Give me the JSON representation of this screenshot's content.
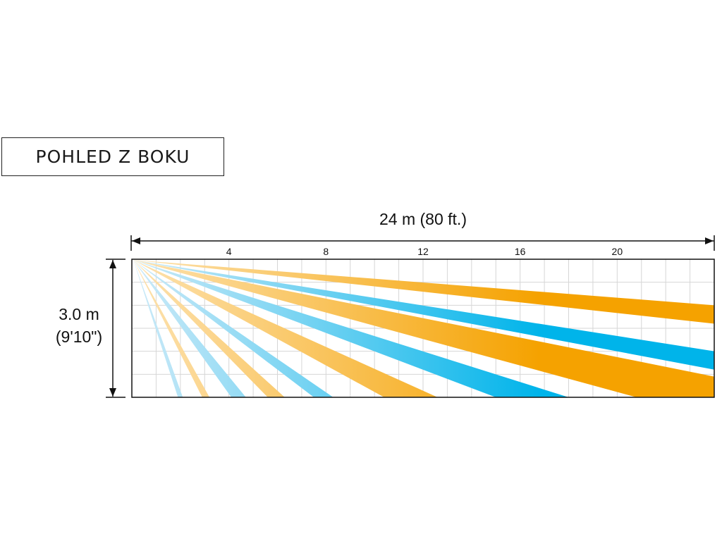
{
  "view_label": "POHLED Z BOKU",
  "dimensions": {
    "width": "24 m (80 ft.)",
    "height_m": "3.0 m",
    "height_ft": "(9'10\")"
  },
  "scale": {
    "range_m": 24,
    "height_m": 3.0,
    "tick_labels": [
      "4",
      "8",
      "12",
      "16",
      "20"
    ],
    "tick_values_m": [
      4,
      8,
      12,
      16,
      20
    ]
  },
  "colors": {
    "orange": "#f5a200",
    "orange_light": "#fde2b0",
    "blue": "#00b4ea",
    "blue_light": "#cdeaf8",
    "grid": "#d6d6d6",
    "frame": "#111111"
  },
  "beams": [
    {
      "color": "orange",
      "near_m": 40,
      "far_m": 40,
      "end_top_h": 2.0,
      "end_bot_h": 1.6
    },
    {
      "color": "blue",
      "near_m": 40,
      "far_m": 40,
      "end_top_h": 1.0,
      "end_bot_h": 0.6
    },
    {
      "color": "orange",
      "near_m": 40,
      "far_m": 40,
      "end_top_h": 0.45,
      "end_bot_h": 0.0
    },
    {
      "color": "blue",
      "near_m": 15,
      "far_m": 18,
      "end_top_h": 0.0,
      "end_bot_h": 0.0
    },
    {
      "color": "orange",
      "near_m": 10.4,
      "far_m": 12.6,
      "end_top_h": 0.0,
      "end_bot_h": 0.0
    },
    {
      "color": "blue",
      "near_m": 7.5,
      "far_m": 8.3,
      "end_top_h": 0.0,
      "end_bot_h": 0.0
    },
    {
      "color": "orange",
      "near_m": 5.6,
      "far_m": 6.3,
      "end_top_h": 0.0,
      "end_bot_h": 0.0
    },
    {
      "color": "blue",
      "near_m": 4.1,
      "far_m": 4.7,
      "end_top_h": 0.0,
      "end_bot_h": 0.0
    },
    {
      "color": "orange",
      "near_m": 2.9,
      "far_m": 3.2,
      "end_top_h": 0.0,
      "end_bot_h": 0.0
    },
    {
      "color": "blue",
      "near_m": 1.9,
      "far_m": 2.1,
      "end_top_h": 0.0,
      "end_bot_h": 0.0
    }
  ]
}
